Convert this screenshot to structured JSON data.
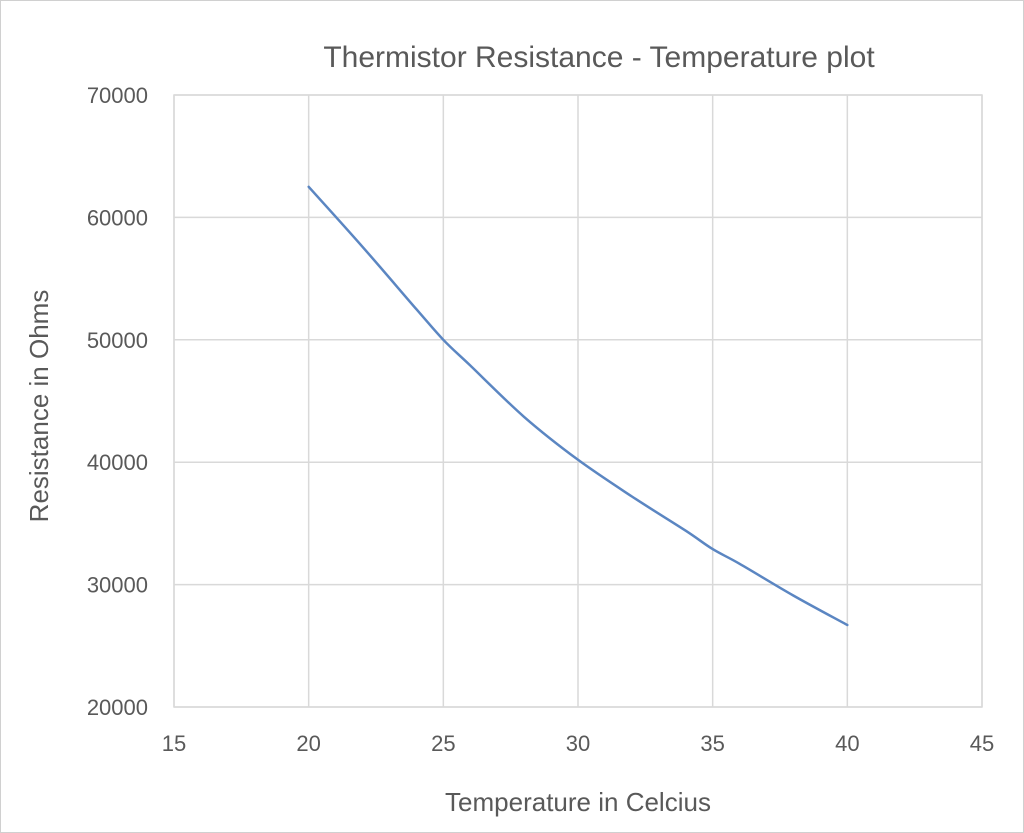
{
  "chart_data": {
    "type": "line",
    "title": "Thermistor Resistance - Temperature plot",
    "xlabel": "Temperature in Celcius",
    "ylabel": "Resistance in Ohms",
    "xlim": [
      15,
      45
    ],
    "ylim": [
      20000,
      70000
    ],
    "x_ticks": [
      15,
      20,
      25,
      30,
      35,
      40,
      45
    ],
    "y_ticks": [
      20000,
      30000,
      40000,
      50000,
      60000,
      70000
    ],
    "x_tick_labels": [
      "15",
      "20",
      "25",
      "30",
      "35",
      "40",
      "45"
    ],
    "y_tick_labels": [
      "20000",
      "30000",
      "40000",
      "50000",
      "60000",
      "70000"
    ],
    "grid": true,
    "legend": "none",
    "series": [
      {
        "color": "#5b86c2",
        "x": [
          20,
          22,
          24,
          25,
          26,
          28,
          30,
          32,
          34,
          35,
          36,
          38,
          40
        ],
        "y": [
          62500,
          57600,
          52500,
          50000,
          47900,
          43700,
          40200,
          37200,
          34400,
          32900,
          31700,
          29100,
          26700
        ]
      }
    ]
  }
}
